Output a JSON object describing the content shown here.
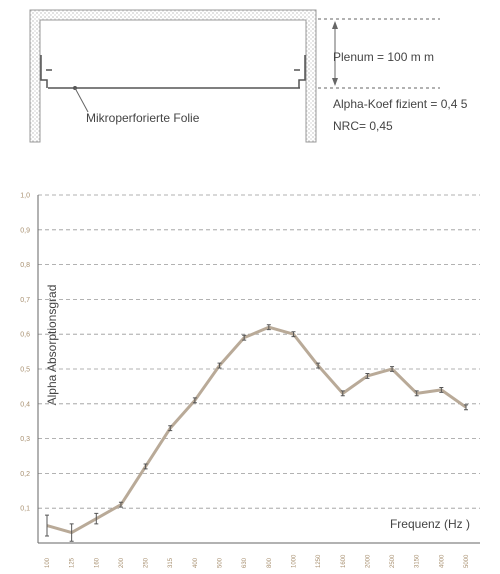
{
  "diagram": {
    "plenum_label": "Plenum = 100 m m",
    "alpha_label": "Alpha-Koef fizient = 0,4 5",
    "nrc_label": "NRC= 0,45",
    "membrane_label": "Mikroperforierte Folie"
  },
  "chart_data": {
    "type": "line",
    "y_label": "Alpha Absorptionsgrad",
    "x_label": "Frequenz (Hz )",
    "categories": [
      "100",
      "125",
      "160",
      "200",
      "250",
      "315",
      "400",
      "500",
      "630",
      "800",
      "1000",
      "1250",
      "1600",
      "2000",
      "2500",
      "3150",
      "4000",
      "5000"
    ],
    "values": [
      0.05,
      0.03,
      0.07,
      0.11,
      0.22,
      0.33,
      0.41,
      0.51,
      0.59,
      0.62,
      0.6,
      0.51,
      0.43,
      0.48,
      0.5,
      0.43,
      0.44,
      0.39
    ],
    "errors": [
      0.03,
      0.025,
      0.015,
      0.007,
      0.007,
      0.007,
      0.007,
      0.007,
      0.007,
      0.007,
      0.007,
      0.007,
      0.007,
      0.007,
      0.007,
      0.007,
      0.007,
      0.007
    ],
    "color": "#b9aa98",
    "error_color": "#555555",
    "ylim": [
      0,
      1
    ],
    "yticks": [
      {
        "value": 0.1,
        "label": "0,1"
      },
      {
        "value": 0.2,
        "label": "0,2"
      },
      {
        "value": 0.3,
        "label": "0,3"
      },
      {
        "value": 0.4,
        "label": "0,4"
      },
      {
        "value": 0.5,
        "label": "0,5"
      },
      {
        "value": 0.6,
        "label": "0,6"
      },
      {
        "value": 0.7,
        "label": "0,7"
      },
      {
        "value": 0.8,
        "label": "0,8"
      },
      {
        "value": 0.9,
        "label": "0,9"
      },
      {
        "value": 1,
        "label": "1,0"
      }
    ],
    "grid": true
  }
}
